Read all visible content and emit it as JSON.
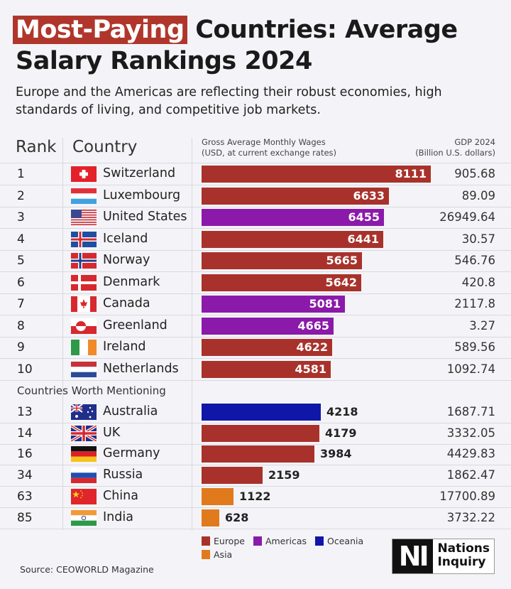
{
  "title": {
    "highlight": "Most-Paying",
    "line1_rest": " Countries: Average",
    "line2": "Salary Rankings 2024"
  },
  "subtitle": "Europe and the Americas are reflecting their robust economies, high standards of living, and competitive job markets.",
  "headers": {
    "rank": "Rank",
    "country": "Country",
    "wages_line1": "Gross Average Monthly Wages",
    "wages_line2": "(USD, at current exchange rates)",
    "gdp_line1": "GDP 2024",
    "gdp_line2": "(Billion U.S. dollars)"
  },
  "mention_label": "Countries Worth Mentioning",
  "colors": {
    "Europe": "#a8322b",
    "Americas": "#8b1aaa",
    "Oceania": "#1016a8",
    "Asia": "#e07a1c",
    "background": "#f4f4f8"
  },
  "chart_data": {
    "type": "bar",
    "orientation": "horizontal",
    "xlim": [
      0,
      8111
    ],
    "legend": [
      "Europe",
      "Americas",
      "Oceania",
      "Asia"
    ],
    "legend_placement": "bottom",
    "rows": [
      {
        "rank": "1",
        "country": "Switzerland",
        "flag": "switzerland-flag",
        "region": "Europe",
        "wage": 8111,
        "gdp": "905.68"
      },
      {
        "rank": "2",
        "country": "Luxembourg",
        "flag": "luxembourg-flag",
        "region": "Europe",
        "wage": 6633,
        "gdp": "89.09"
      },
      {
        "rank": "3",
        "country": "United States",
        "flag": "us-flag",
        "region": "Americas",
        "wage": 6455,
        "gdp": "26949.64"
      },
      {
        "rank": "4",
        "country": "Iceland",
        "flag": "iceland-flag",
        "region": "Europe",
        "wage": 6441,
        "gdp": "30.57"
      },
      {
        "rank": "5",
        "country": "Norway",
        "flag": "norway-flag",
        "region": "Europe",
        "wage": 5665,
        "gdp": "546.76"
      },
      {
        "rank": "6",
        "country": "Denmark",
        "flag": "denmark-flag",
        "region": "Europe",
        "wage": 5642,
        "gdp": "420.8"
      },
      {
        "rank": "7",
        "country": "Canada",
        "flag": "canada-flag",
        "region": "Americas",
        "wage": 5081,
        "gdp": "2117.8"
      },
      {
        "rank": "8",
        "country": "Greenland",
        "flag": "greenland-flag",
        "region": "Americas",
        "wage": 4665,
        "gdp": "3.27"
      },
      {
        "rank": "9",
        "country": "Ireland",
        "flag": "ireland-flag",
        "region": "Europe",
        "wage": 4622,
        "gdp": "589.56"
      },
      {
        "rank": "10",
        "country": "Netherlands",
        "flag": "netherlands-flag",
        "region": "Europe",
        "wage": 4581,
        "gdp": "1092.74"
      }
    ],
    "mention_rows": [
      {
        "rank": "13",
        "country": "Australia",
        "flag": "australia-flag",
        "region": "Oceania",
        "wage": 4218,
        "gdp": "1687.71"
      },
      {
        "rank": "14",
        "country": "UK",
        "flag": "uk-flag",
        "region": "Europe",
        "wage": 4179,
        "gdp": "3332.05"
      },
      {
        "rank": "16",
        "country": "Germany",
        "flag": "germany-flag",
        "region": "Europe",
        "wage": 3984,
        "gdp": "4429.83"
      },
      {
        "rank": "34",
        "country": "Russia",
        "flag": "russia-flag",
        "region": "Europe",
        "wage": 2159,
        "gdp": "1862.47"
      },
      {
        "rank": "63",
        "country": "China",
        "flag": "china-flag",
        "region": "Asia",
        "wage": 1122,
        "gdp": "17700.89"
      },
      {
        "rank": "85",
        "country": "India",
        "flag": "india-flag",
        "region": "Asia",
        "wage": 628,
        "gdp": "3732.22"
      }
    ]
  },
  "source": "Source: CEOWORLD Magazine",
  "logo": {
    "mark": "NI",
    "line1": "Nations",
    "line2": "Inquiry"
  }
}
